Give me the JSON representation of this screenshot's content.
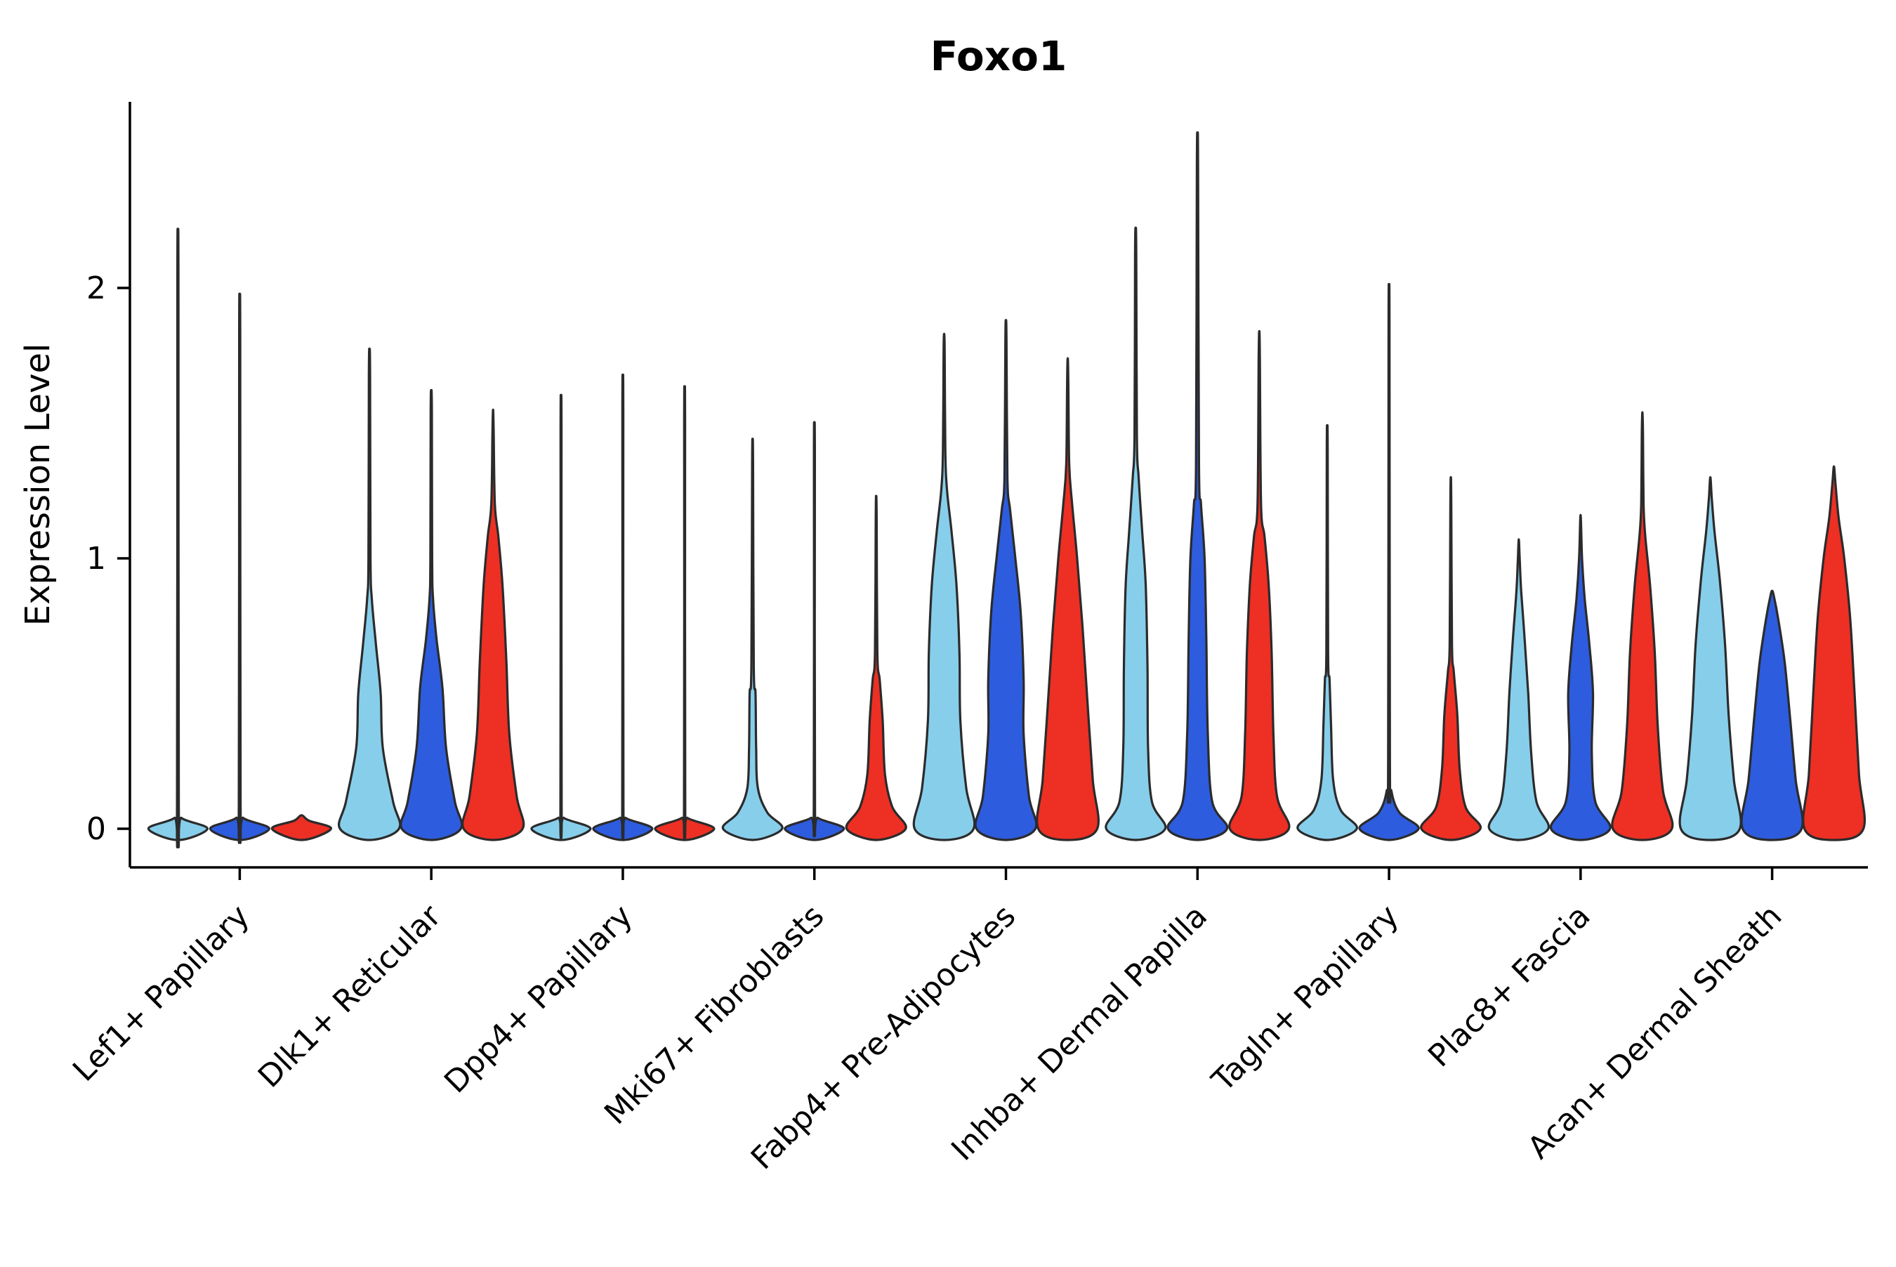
{
  "chart_data": {
    "type": "violin",
    "title": "Foxo1",
    "ylabel": "Expression Level",
    "ylim": [
      -0.12,
      2.7
    ],
    "yticks": [
      0,
      1,
      2
    ],
    "grid": false,
    "legend": "none",
    "edge_color": "#2b2b2b",
    "background": "#ffffff",
    "categories": [
      "Lef1+ Papillary",
      "Dlk1+ Reticular",
      "Dpp4+ Papillary",
      "Mki67+ Fibroblasts",
      "Fabp4+ Pre-Adipocytes",
      "Inhba+ Dermal Papilla",
      "Tagln+ Papillary",
      "Plac8+ Fascia",
      "Acan+ Dermal Sheath"
    ],
    "series": [
      {
        "color": "#87CEEB",
        "violins": [
          {
            "max": 2.13,
            "profile": [
              [
                0,
                1
              ],
              [
                0.04,
                0.12
              ],
              [
                0.09,
                0.03
              ],
              [
                2.04,
                0.018
              ],
              [
                2.13,
                0
              ]
            ]
          },
          {
            "max": 1.77,
            "profile": [
              [
                0,
                1
              ],
              [
                0.1,
                0.8
              ],
              [
                0.3,
                0.45
              ],
              [
                0.5,
                0.38
              ],
              [
                0.68,
                0.22
              ],
              [
                0.85,
                0.08
              ],
              [
                1.0,
                0.035
              ],
              [
                1.68,
                0.02
              ],
              [
                1.77,
                0
              ]
            ]
          },
          {
            "max": 1.55,
            "profile": [
              [
                0,
                1
              ],
              [
                0.04,
                0.1
              ],
              [
                0.08,
                0.02
              ],
              [
                1.47,
                0.015
              ],
              [
                1.55,
                0
              ]
            ]
          },
          {
            "max": 1.43,
            "profile": [
              [
                0,
                1
              ],
              [
                0.06,
                0.5
              ],
              [
                0.15,
                0.18
              ],
              [
                0.3,
                0.12
              ],
              [
                0.5,
                0.1
              ],
              [
                0.6,
                0.04
              ],
              [
                1.35,
                0.015
              ],
              [
                1.43,
                0
              ]
            ]
          },
          {
            "max": 1.83,
            "profile": [
              [
                0,
                1
              ],
              [
                0.15,
                0.75
              ],
              [
                0.4,
                0.55
              ],
              [
                0.65,
                0.52
              ],
              [
                0.9,
                0.42
              ],
              [
                1.1,
                0.25
              ],
              [
                1.25,
                0.1
              ],
              [
                1.4,
                0.04
              ],
              [
                1.75,
                0.02
              ],
              [
                1.83,
                0
              ]
            ]
          },
          {
            "max": 2.22,
            "profile": [
              [
                0,
                1
              ],
              [
                0.1,
                0.55
              ],
              [
                0.3,
                0.42
              ],
              [
                0.6,
                0.4
              ],
              [
                0.9,
                0.34
              ],
              [
                1.1,
                0.22
              ],
              [
                1.3,
                0.1
              ],
              [
                1.45,
                0.04
              ],
              [
                2.12,
                0.02
              ],
              [
                2.22,
                0
              ]
            ]
          },
          {
            "max": 1.48,
            "profile": [
              [
                0,
                1
              ],
              [
                0.07,
                0.45
              ],
              [
                0.18,
                0.2
              ],
              [
                0.38,
                0.13
              ],
              [
                0.55,
                0.08
              ],
              [
                0.65,
                0.03
              ],
              [
                1.4,
                0.015
              ],
              [
                1.48,
                0
              ]
            ]
          },
          {
            "max": 1.07,
            "profile": [
              [
                0,
                1
              ],
              [
                0.1,
                0.6
              ],
              [
                0.28,
                0.42
              ],
              [
                0.5,
                0.32
              ],
              [
                0.7,
                0.2
              ],
              [
                0.88,
                0.08
              ],
              [
                1.0,
                0.03
              ],
              [
                1.07,
                0
              ]
            ]
          },
          {
            "max": 1.3,
            "profile": [
              [
                0,
                1
              ],
              [
                0.18,
                0.8
              ],
              [
                0.42,
                0.62
              ],
              [
                0.68,
                0.5
              ],
              [
                0.92,
                0.32
              ],
              [
                1.1,
                0.14
              ],
              [
                1.22,
                0.05
              ],
              [
                1.3,
                0
              ]
            ]
          }
        ]
      },
      {
        "color": "#2D5CDE",
        "violins": [
          {
            "max": 1.9,
            "profile": [
              [
                0,
                1
              ],
              [
                0.04,
                0.12
              ],
              [
                0.09,
                0.03
              ],
              [
                1.82,
                0.018
              ],
              [
                1.9,
                0
              ]
            ]
          },
          {
            "max": 1.62,
            "profile": [
              [
                0,
                1
              ],
              [
                0.1,
                0.8
              ],
              [
                0.3,
                0.5
              ],
              [
                0.52,
                0.38
              ],
              [
                0.7,
                0.18
              ],
              [
                0.85,
                0.06
              ],
              [
                1.0,
                0.03
              ],
              [
                1.54,
                0.02
              ],
              [
                1.62,
                0
              ]
            ]
          },
          {
            "max": 1.62,
            "profile": [
              [
                0,
                1
              ],
              [
                0.04,
                0.1
              ],
              [
                0.08,
                0.02
              ],
              [
                1.54,
                0.015
              ],
              [
                1.62,
                0
              ]
            ]
          },
          {
            "max": 1.45,
            "profile": [
              [
                0,
                1
              ],
              [
                0.04,
                0.12
              ],
              [
                0.08,
                0.02
              ],
              [
                1.38,
                0.015
              ],
              [
                1.45,
                0
              ]
            ]
          },
          {
            "max": 1.88,
            "profile": [
              [
                0,
                1
              ],
              [
                0.12,
                0.78
              ],
              [
                0.35,
                0.6
              ],
              [
                0.55,
                0.6
              ],
              [
                0.8,
                0.5
              ],
              [
                1.0,
                0.32
              ],
              [
                1.18,
                0.14
              ],
              [
                1.3,
                0.05
              ],
              [
                1.8,
                0.02
              ],
              [
                1.88,
                0
              ]
            ]
          },
          {
            "max": 2.55,
            "profile": [
              [
                0,
                1
              ],
              [
                0.1,
                0.5
              ],
              [
                0.35,
                0.35
              ],
              [
                0.7,
                0.3
              ],
              [
                1.0,
                0.24
              ],
              [
                1.2,
                0.12
              ],
              [
                1.35,
                0.05
              ],
              [
                2.45,
                0.02
              ],
              [
                2.55,
                0
              ]
            ]
          },
          {
            "max": 1.95,
            "profile": [
              [
                0,
                1
              ],
              [
                0.06,
                0.35
              ],
              [
                0.14,
                0.08
              ],
              [
                0.25,
                0.03
              ],
              [
                1.86,
                0.015
              ],
              [
                1.95,
                0
              ]
            ]
          },
          {
            "max": 1.16,
            "profile": [
              [
                0,
                1
              ],
              [
                0.1,
                0.5
              ],
              [
                0.28,
                0.38
              ],
              [
                0.5,
                0.42
              ],
              [
                0.68,
                0.3
              ],
              [
                0.85,
                0.14
              ],
              [
                1.0,
                0.05
              ],
              [
                1.16,
                0
              ]
            ]
          },
          {
            "max": 0.88,
            "profile": [
              [
                0,
                1
              ],
              [
                0.18,
                0.8
              ],
              [
                0.42,
                0.6
              ],
              [
                0.62,
                0.42
              ],
              [
                0.78,
                0.2
              ],
              [
                0.86,
                0.06
              ],
              [
                0.88,
                0
              ]
            ]
          }
        ]
      },
      {
        "color": "#EE2F24",
        "violins": [
          {
            "max": 0.05,
            "profile": [
              [
                0,
                1
              ],
              [
                0.03,
                0.25
              ],
              [
                0.05,
                0
              ]
            ]
          },
          {
            "max": 1.55,
            "profile": [
              [
                0,
                1
              ],
              [
                0.12,
                0.8
              ],
              [
                0.35,
                0.55
              ],
              [
                0.62,
                0.45
              ],
              [
                0.9,
                0.32
              ],
              [
                1.08,
                0.18
              ],
              [
                1.2,
                0.06
              ],
              [
                1.47,
                0.02
              ],
              [
                1.55,
                0
              ]
            ]
          },
          {
            "max": 1.58,
            "profile": [
              [
                0,
                1
              ],
              [
                0.04,
                0.1
              ],
              [
                0.08,
                0.02
              ],
              [
                1.5,
                0.015
              ],
              [
                1.58,
                0
              ]
            ]
          },
          {
            "max": 1.23,
            "profile": [
              [
                0,
                1
              ],
              [
                0.08,
                0.55
              ],
              [
                0.2,
                0.3
              ],
              [
                0.4,
                0.22
              ],
              [
                0.55,
                0.12
              ],
              [
                0.65,
                0.04
              ],
              [
                1.15,
                0.015
              ],
              [
                1.23,
                0
              ]
            ]
          },
          {
            "max": 1.74,
            "profile": [
              [
                0,
                1
              ],
              [
                0.18,
                0.85
              ],
              [
                0.45,
                0.68
              ],
              [
                0.75,
                0.5
              ],
              [
                1.0,
                0.32
              ],
              [
                1.2,
                0.15
              ],
              [
                1.35,
                0.05
              ],
              [
                1.66,
                0.02
              ],
              [
                1.74,
                0
              ]
            ]
          },
          {
            "max": 1.84,
            "profile": [
              [
                0,
                1
              ],
              [
                0.12,
                0.6
              ],
              [
                0.35,
                0.48
              ],
              [
                0.65,
                0.42
              ],
              [
                0.9,
                0.32
              ],
              [
                1.08,
                0.18
              ],
              [
                1.2,
                0.06
              ],
              [
                1.74,
                0.02
              ],
              [
                1.84,
                0
              ]
            ]
          },
          {
            "max": 1.3,
            "profile": [
              [
                0,
                1
              ],
              [
                0.08,
                0.5
              ],
              [
                0.22,
                0.3
              ],
              [
                0.42,
                0.22
              ],
              [
                0.58,
                0.1
              ],
              [
                0.68,
                0.04
              ],
              [
                1.2,
                0.015
              ],
              [
                1.3,
                0
              ]
            ]
          },
          {
            "max": 1.54,
            "profile": [
              [
                0,
                1
              ],
              [
                0.14,
                0.7
              ],
              [
                0.38,
                0.52
              ],
              [
                0.65,
                0.42
              ],
              [
                0.9,
                0.26
              ],
              [
                1.08,
                0.1
              ],
              [
                1.2,
                0.04
              ],
              [
                1.46,
                0.02
              ],
              [
                1.54,
                0
              ]
            ]
          },
          {
            "max": 1.34,
            "profile": [
              [
                0,
                1
              ],
              [
                0.2,
                0.85
              ],
              [
                0.5,
                0.7
              ],
              [
                0.78,
                0.55
              ],
              [
                1.0,
                0.35
              ],
              [
                1.15,
                0.16
              ],
              [
                1.28,
                0.05
              ],
              [
                1.34,
                0
              ]
            ]
          }
        ]
      }
    ]
  }
}
